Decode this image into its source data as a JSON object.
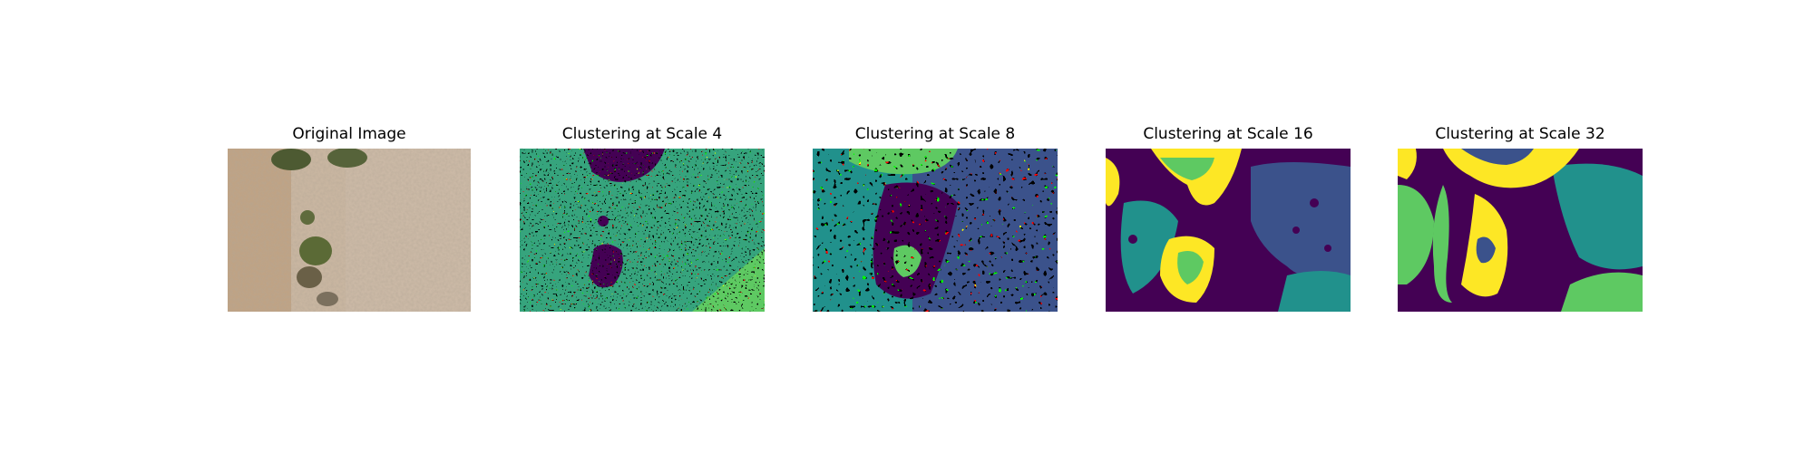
{
  "figure": {
    "panels": [
      {
        "title": "Original Image",
        "kind": "photo"
      },
      {
        "title": "Clustering at Scale 4",
        "kind": "clusters"
      },
      {
        "title": "Clustering at Scale 8",
        "kind": "clusters"
      },
      {
        "title": "Clustering at Scale 16",
        "kind": "clusters"
      },
      {
        "title": "Clustering at Scale 32",
        "kind": "clusters"
      }
    ],
    "palette": {
      "viridis": [
        "#440154",
        "#3b528b",
        "#21918c",
        "#5ec962",
        "#fde725"
      ],
      "photo": [
        "#c7b29b",
        "#b39b83",
        "#8f7d68",
        "#5b6b3a",
        "#3e4a2b"
      ]
    }
  }
}
